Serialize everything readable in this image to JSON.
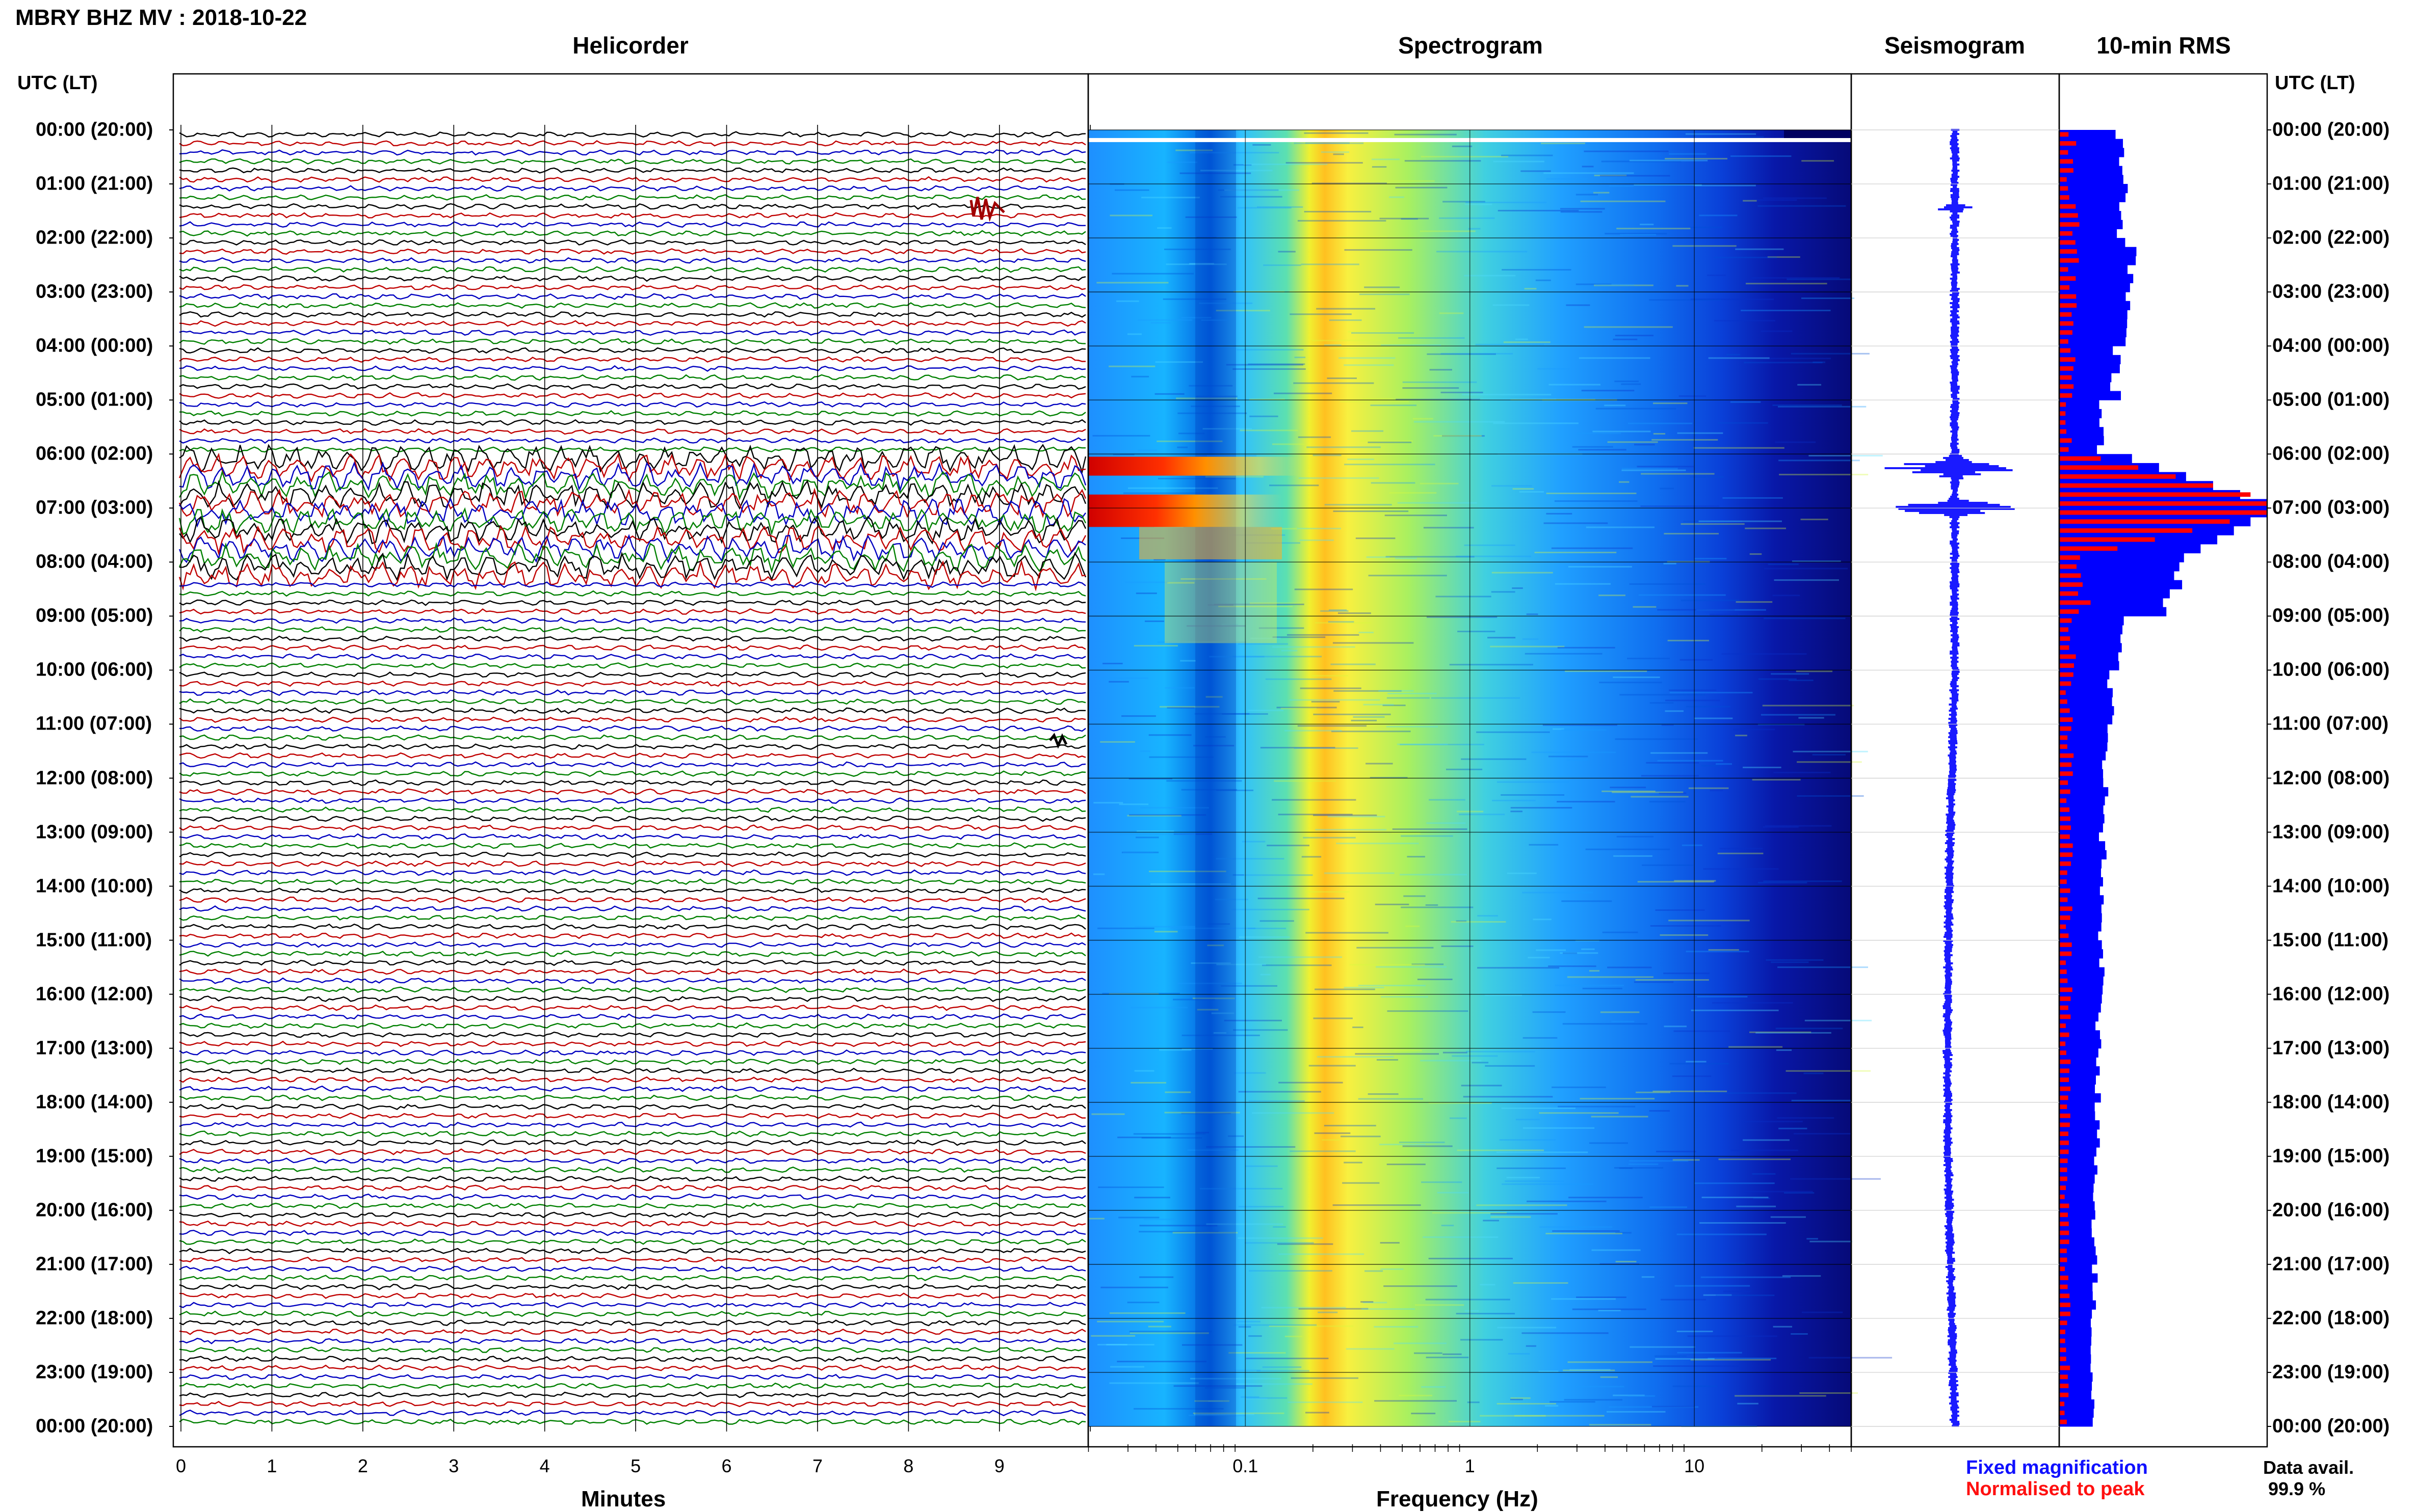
{
  "header": {
    "title": "MBRY BHZ MV : 2018-10-22"
  },
  "panels": {
    "helicorder": "Helicorder",
    "spectrogram": "Spectrogram",
    "seismogram": "Seismogram",
    "rms": "10-min RMS"
  },
  "time_axis": {
    "header_left": "UTC (LT)",
    "header_right": "UTC (LT)",
    "labels": [
      "00:00 (20:00)",
      "01:00 (21:00)",
      "02:00 (22:00)",
      "03:00 (23:00)",
      "04:00 (00:00)",
      "05:00 (01:00)",
      "06:00 (02:00)",
      "07:00 (03:00)",
      "08:00 (04:00)",
      "09:00 (05:00)",
      "10:00 (06:00)",
      "11:00 (07:00)",
      "12:00 (08:00)",
      "13:00 (09:00)",
      "14:00 (10:00)",
      "15:00 (11:00)",
      "16:00 (12:00)",
      "17:00 (13:00)",
      "18:00 (14:00)",
      "19:00 (15:00)",
      "20:00 (16:00)",
      "21:00 (17:00)",
      "22:00 (18:00)",
      "23:00 (19:00)",
      "00:00 (20:00)"
    ]
  },
  "footer": {
    "minutes_label": "Minutes",
    "frequency_label": "Frequency (Hz)",
    "legend_fixed": "Fixed magnification",
    "legend_normalised": "Normalised to peak",
    "data_avail_label": "Data avail.",
    "data_avail_value": "99.9 %"
  },
  "colors": {
    "helicorder_traces": [
      "#000000",
      "#c00000",
      "#0000c0",
      "#008000"
    ],
    "rms_fixed": "#0000ff",
    "rms_normalised": "#ff0000",
    "seismogram": "#1a1aff"
  },
  "chart_data": [
    {
      "type": "line",
      "title": "Helicorder",
      "xlabel": "Minutes",
      "xticks": [
        "0",
        "1",
        "2",
        "3",
        "4",
        "5",
        "6",
        "7",
        "8",
        "9"
      ],
      "xlim": [
        0,
        10
      ],
      "rows_per_hour": 6,
      "hours": 24
    },
    {
      "type": "heatmap",
      "title": "Spectrogram",
      "xlabel": "Frequency (Hz)",
      "xscale": "log",
      "xticks": [
        "0.1",
        "1",
        "10"
      ],
      "xlim": [
        0.02,
        50
      ],
      "dominant_band_hz": 0.22,
      "high_energy_hours_utc": [
        6,
        7
      ]
    },
    {
      "type": "line",
      "title": "Seismogram",
      "peak_hours_utc": [
        6.2,
        7.0
      ]
    },
    {
      "type": "bar",
      "title": "10-min RMS",
      "series": [
        {
          "name": "Fixed magnification",
          "values_per_hour": [
            0.3,
            0.3,
            0.34,
            0.32,
            0.27,
            0.2,
            0.62,
            1.0,
            0.55,
            0.3,
            0.24,
            0.22,
            0.22,
            0.21,
            0.2,
            0.2,
            0.19,
            0.19,
            0.18,
            0.18,
            0.17,
            0.17,
            0.16,
            0.16
          ]
        },
        {
          "name": "Normalised to peak",
          "values_per_hour": [
            0.06,
            0.07,
            0.07,
            0.06,
            0.06,
            0.05,
            0.7,
            1.0,
            0.12,
            0.06,
            0.05,
            0.05,
            0.05,
            0.05,
            0.05,
            0.05,
            0.04,
            0.04,
            0.04,
            0.04,
            0.04,
            0.04,
            0.04,
            0.04
          ]
        }
      ]
    }
  ]
}
